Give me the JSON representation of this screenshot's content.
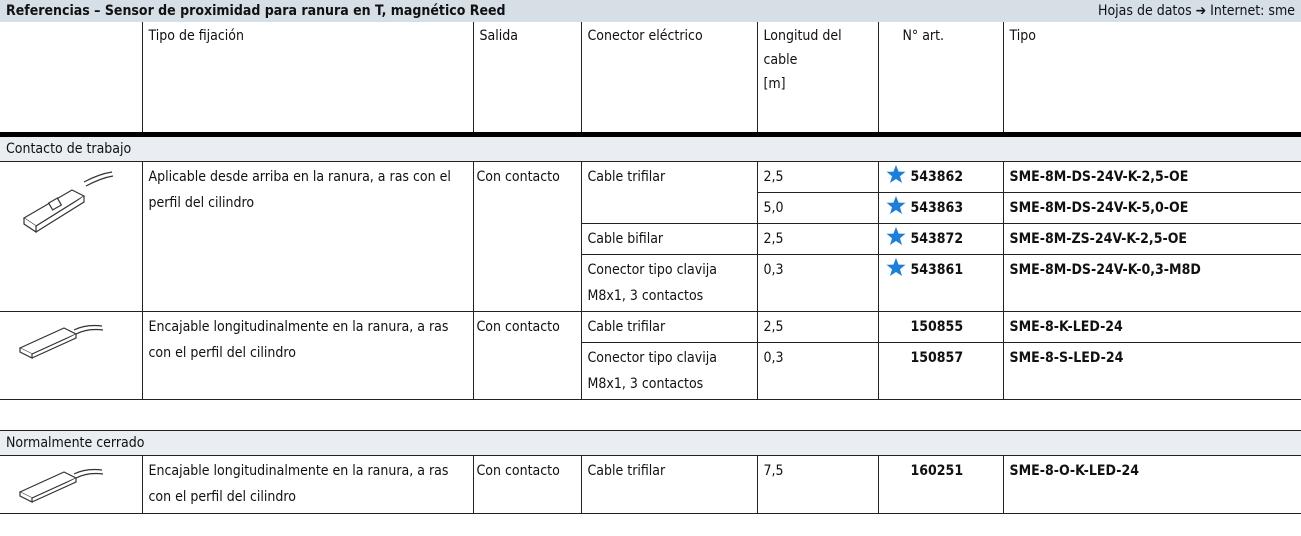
{
  "header": {
    "title": "Referencias – Sensor de proximidad para ranura en T, magnético Reed",
    "right_text": "Hojas de datos ➔ Internet: sme"
  },
  "columns": {
    "fixing": "Tipo de fijación",
    "output": "Salida",
    "connector": "Conector eléctrico",
    "length": [
      "Longitud del",
      "cable",
      "[m]"
    ],
    "art": "N° art.",
    "type": "Tipo"
  },
  "sections": [
    {
      "title": "Contacto de trabajo",
      "groups": [
        {
          "fixing": "Aplicable desde arriba en la ranura, a ras con el perfil del cilindro",
          "output": "Con contacto",
          "connectors": [
            {
              "label": "Cable trifilar",
              "items": [
                {
                  "length": "2,5",
                  "art": "543862",
                  "type": "SME-8M-DS-24V-K-2,5-OE",
                  "featured": true
                },
                {
                  "length": "5,0",
                  "art": "543863",
                  "type": "SME-8M-DS-24V-K-5,0-OE",
                  "featured": true
                }
              ]
            },
            {
              "label": "Cable bifilar",
              "items": [
                {
                  "length": "2,5",
                  "art": "543872",
                  "type": "SME-8M-ZS-24V-K-2,5-OE",
                  "featured": true
                }
              ]
            },
            {
              "label": "Conector tipo clavija M8x1, 3 contactos",
              "items": [
                {
                  "length": "0,3",
                  "art": "543861",
                  "type": "SME-8M-DS-24V-K-0,3-M8D",
                  "featured": true
                }
              ]
            }
          ]
        },
        {
          "fixing": "Encajable longitudinalmente en la ranura, a ras con el perfil del cilindro",
          "output": "Con contacto",
          "connectors": [
            {
              "label": "Cable trifilar",
              "items": [
                {
                  "length": "2,5",
                  "art": "150855",
                  "type": "SME-8-K-LED-24",
                  "featured": false
                }
              ]
            },
            {
              "label": "Conector tipo clavija M8x1, 3 contactos",
              "items": [
                {
                  "length": "0,3",
                  "art": "150857",
                  "type": "SME-8-S-LED-24",
                  "featured": false
                }
              ]
            }
          ]
        }
      ]
    },
    {
      "title": "Normalmente cerrado",
      "groups": [
        {
          "fixing": "Encajable longitudinalmente en la ranura, a ras con el perfil del cilindro",
          "output": "Con contacto",
          "connectors": [
            {
              "label": "Cable trifilar",
              "items": [
                {
                  "length": "7,5",
                  "art": "160251",
                  "type": "SME-8-O-K-LED-24",
                  "featured": false
                }
              ]
            }
          ]
        }
      ]
    }
  ]
}
